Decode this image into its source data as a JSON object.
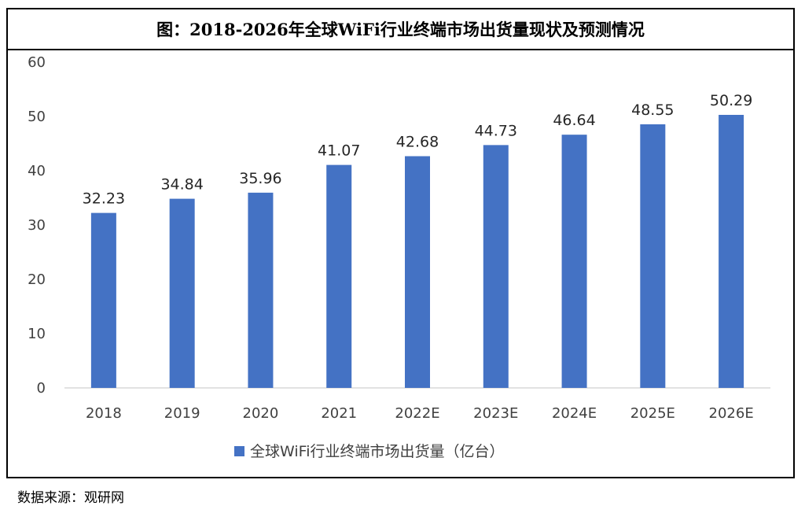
{
  "figure_title": "图：2018-2026年全球WiFi行业终端市场出货量现状及预测情况",
  "source": "数据来源：观研网",
  "chart_data": {
    "type": "bar",
    "categories": [
      "2018",
      "2019",
      "2020",
      "2021",
      "2022E",
      "2023E",
      "2024E",
      "2025E",
      "2026E"
    ],
    "series": [
      {
        "name": "全球WiFi行业终端市场出货量（亿台）",
        "values": [
          32.23,
          34.84,
          35.96,
          41.07,
          42.68,
          44.73,
          46.64,
          48.55,
          50.29
        ],
        "labels": [
          "32.23",
          "34.84",
          "35.96",
          "41.07",
          "42.68",
          "44.73",
          "46.64",
          "48.55",
          "50.29"
        ],
        "color": "#4472c4"
      }
    ],
    "ylim": [
      0,
      60
    ],
    "yticks": [
      0,
      10,
      20,
      30,
      40,
      50,
      60
    ],
    "xlabel": "",
    "ylabel": "",
    "grid": false,
    "legend_position": "bottom",
    "data_labels": true
  }
}
